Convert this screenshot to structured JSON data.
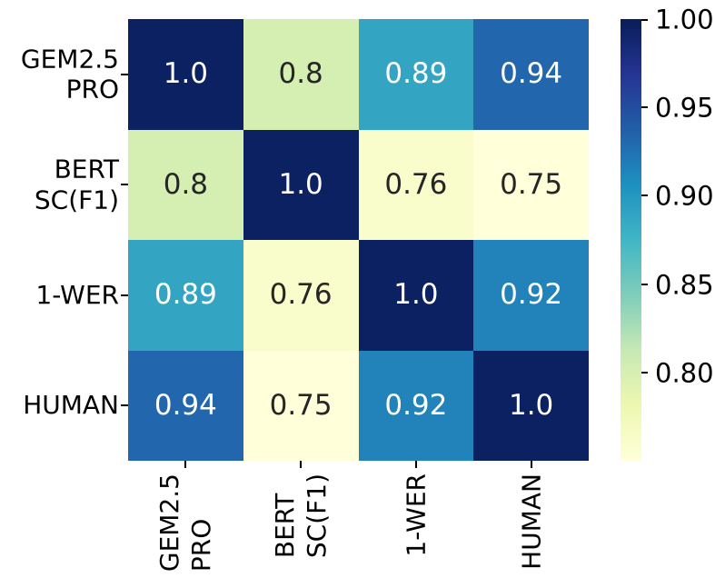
{
  "chart_data": {
    "type": "heatmap",
    "title": "",
    "xlabel": "",
    "ylabel": "",
    "categories": [
      "GEM2.5 PRO",
      "BERT SC(F1)",
      "1-WER",
      "HUMAN"
    ],
    "category_lines": [
      [
        "GEM2.5",
        "PRO"
      ],
      [
        "BERT",
        "SC(F1)"
      ],
      [
        "1-WER"
      ],
      [
        "HUMAN"
      ]
    ],
    "matrix": [
      [
        1.0,
        0.8,
        0.89,
        0.94
      ],
      [
        0.8,
        1.0,
        0.76,
        0.75
      ],
      [
        0.89,
        0.76,
        1.0,
        0.92
      ],
      [
        0.94,
        0.75,
        0.92,
        1.0
      ]
    ],
    "cell_labels": [
      [
        "1.0",
        "0.8",
        "0.89",
        "0.94"
      ],
      [
        "0.8",
        "1.0",
        "0.76",
        "0.75"
      ],
      [
        "0.89",
        "0.76",
        "1.0",
        "0.92"
      ],
      [
        "0.94",
        "0.75",
        "0.92",
        "1.0"
      ]
    ],
    "cell_colors": [
      [
        "#0c2161",
        "#d5efb3",
        "#33a5c3",
        "#2267ad"
      ],
      [
        "#d5efb3",
        "#0c2161",
        "#f9fdcb",
        "#ffffd9"
      ],
      [
        "#33a5c3",
        "#f9fdcb",
        "#0c2161",
        "#2183b9"
      ],
      [
        "#2267ad",
        "#ffffd9",
        "#2183b9",
        "#0c2161"
      ]
    ],
    "annotation_text_colors": {
      "on_dark": "#ffffff",
      "on_light": "#262626"
    },
    "colormap": "YlGnBu",
    "vmin": 0.75,
    "vmax": 1.0,
    "grid": false,
    "colorbar": {
      "position": "right",
      "tick_labels": [
        "1.00",
        "0.95",
        "0.90",
        "0.85",
        "0.80"
      ],
      "tick_values": [
        1.0,
        0.95,
        0.9,
        0.85,
        0.8
      ],
      "gradient_stops_bottom_to_top": [
        "#ffffd9",
        "#edf8b1",
        "#c7e9b4",
        "#7fcdbb",
        "#41b6c4",
        "#1d91c0",
        "#225ea8",
        "#253494",
        "#081d58"
      ]
    }
  }
}
